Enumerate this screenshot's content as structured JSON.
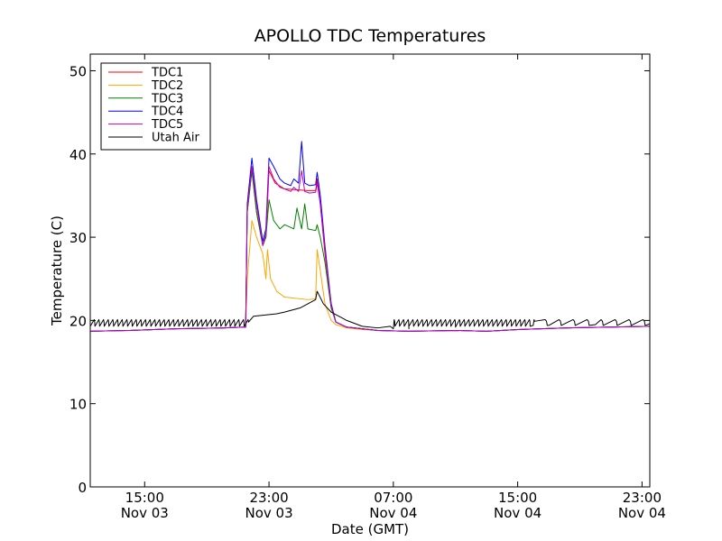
{
  "chart_data": {
    "type": "line",
    "title": "APOLLO TDC Temperatures",
    "xlabel": "Date (GMT)",
    "ylabel": "Temperature (C)",
    "ylim": [
      0,
      52
    ],
    "xlim_hours": [
      11.5,
      47.5
    ],
    "x_unit": "hours since 00:00 Nov 03 (GMT)",
    "grid": false,
    "legend_position": "top-left",
    "yticks": [
      0,
      10,
      20,
      30,
      40,
      50
    ],
    "xticks": [
      {
        "hour": 15,
        "time": "15:00",
        "date": "Nov 03"
      },
      {
        "hour": 23,
        "time": "23:00",
        "date": "Nov 03"
      },
      {
        "hour": 31,
        "time": "07:00",
        "date": "Nov 04"
      },
      {
        "hour": 39,
        "time": "15:00",
        "date": "Nov 04"
      },
      {
        "hour": 47,
        "time": "23:00",
        "date": "Nov 04"
      }
    ],
    "series": [
      {
        "name": "TDC1",
        "color": "#ff0000",
        "points": [
          [
            11.5,
            18.7
          ],
          [
            14,
            18.8
          ],
          [
            17,
            19.0
          ],
          [
            20,
            19.1
          ],
          [
            21.5,
            19.2
          ],
          [
            21.6,
            33.0
          ],
          [
            21.9,
            38.0
          ],
          [
            22.2,
            33.0
          ],
          [
            22.6,
            29.0
          ],
          [
            22.8,
            30.0
          ],
          [
            23.0,
            38.0
          ],
          [
            23.4,
            36.5
          ],
          [
            24,
            35.8
          ],
          [
            25.5,
            35.6
          ],
          [
            26,
            35.6
          ],
          [
            26.1,
            37.0
          ],
          [
            26.3,
            34.0
          ],
          [
            26.6,
            28.0
          ],
          [
            27,
            22.0
          ],
          [
            27.3,
            19.8
          ],
          [
            28,
            19.2
          ],
          [
            29,
            19.0
          ],
          [
            30,
            18.8
          ],
          [
            32,
            18.7
          ],
          [
            35,
            18.8
          ],
          [
            37,
            18.7
          ],
          [
            39,
            18.9
          ],
          [
            42,
            19.1
          ],
          [
            45,
            19.2
          ],
          [
            47.5,
            19.3
          ]
        ]
      },
      {
        "name": "TDC2",
        "color": "#ffa500",
        "points": [
          [
            11.5,
            18.7
          ],
          [
            14,
            18.8
          ],
          [
            17,
            19.0
          ],
          [
            20,
            19.1
          ],
          [
            21.5,
            19.2
          ],
          [
            21.6,
            25.0
          ],
          [
            21.9,
            32.0
          ],
          [
            22.2,
            30.0
          ],
          [
            22.6,
            28.0
          ],
          [
            22.8,
            25.0
          ],
          [
            22.9,
            28.5
          ],
          [
            23.1,
            25.0
          ],
          [
            23.5,
            23.5
          ],
          [
            24,
            22.8
          ],
          [
            25.5,
            22.5
          ],
          [
            26,
            22.6
          ],
          [
            26.1,
            28.5
          ],
          [
            26.3,
            26.0
          ],
          [
            26.6,
            22.0
          ],
          [
            27,
            20.0
          ],
          [
            27.3,
            19.5
          ],
          [
            28,
            19.1
          ],
          [
            29,
            18.9
          ],
          [
            30,
            18.8
          ],
          [
            32,
            18.7
          ],
          [
            35,
            18.8
          ],
          [
            37,
            18.7
          ],
          [
            39,
            18.9
          ],
          [
            42,
            19.1
          ],
          [
            45,
            19.2
          ],
          [
            47.5,
            19.3
          ]
        ]
      },
      {
        "name": "TDC3",
        "color": "#008000",
        "points": [
          [
            11.5,
            18.7
          ],
          [
            14,
            18.8
          ],
          [
            17,
            19.0
          ],
          [
            20,
            19.1
          ],
          [
            21.5,
            19.2
          ],
          [
            21.6,
            33.0
          ],
          [
            21.9,
            38.0
          ],
          [
            22.2,
            33.0
          ],
          [
            22.6,
            29.0
          ],
          [
            22.8,
            30.0
          ],
          [
            23.0,
            34.5
          ],
          [
            23.3,
            32.0
          ],
          [
            23.7,
            31.0
          ],
          [
            24,
            31.5
          ],
          [
            24.6,
            31.0
          ],
          [
            24.8,
            33.5
          ],
          [
            25.1,
            31.0
          ],
          [
            25.3,
            34.0
          ],
          [
            25.5,
            31.0
          ],
          [
            26,
            30.8
          ],
          [
            26.1,
            31.5
          ],
          [
            26.3,
            30.0
          ],
          [
            26.6,
            27.0
          ],
          [
            27,
            21.5
          ],
          [
            27.3,
            19.8
          ],
          [
            28,
            19.2
          ],
          [
            29,
            19.0
          ],
          [
            30,
            18.8
          ],
          [
            32,
            18.7
          ],
          [
            35,
            18.8
          ],
          [
            37,
            18.7
          ],
          [
            39,
            18.9
          ],
          [
            42,
            19.1
          ],
          [
            45,
            19.2
          ],
          [
            47.5,
            19.3
          ]
        ]
      },
      {
        "name": "TDC4",
        "color": "#0000ff",
        "points": [
          [
            11.5,
            18.7
          ],
          [
            14,
            18.8
          ],
          [
            17,
            19.0
          ],
          [
            20,
            19.1
          ],
          [
            21.5,
            19.2
          ],
          [
            21.6,
            34.0
          ],
          [
            21.9,
            39.5
          ],
          [
            22.2,
            34.5
          ],
          [
            22.6,
            29.5
          ],
          [
            22.8,
            31.0
          ],
          [
            23.0,
            39.5
          ],
          [
            23.3,
            38.5
          ],
          [
            23.7,
            37.0
          ],
          [
            24,
            36.5
          ],
          [
            24.4,
            36.2
          ],
          [
            24.6,
            37.0
          ],
          [
            24.9,
            36.5
          ],
          [
            25.1,
            41.5
          ],
          [
            25.3,
            36.5
          ],
          [
            25.6,
            36.2
          ],
          [
            26,
            36.3
          ],
          [
            26.1,
            37.8
          ],
          [
            26.3,
            35.0
          ],
          [
            26.6,
            29.0
          ],
          [
            27,
            22.0
          ],
          [
            27.3,
            19.8
          ],
          [
            28,
            19.2
          ],
          [
            29,
            19.0
          ],
          [
            30,
            18.8
          ],
          [
            32,
            18.7
          ],
          [
            35,
            18.8
          ],
          [
            37,
            18.7
          ],
          [
            39,
            18.9
          ],
          [
            42,
            19.1
          ],
          [
            45,
            19.2
          ],
          [
            47.5,
            19.3
          ]
        ]
      },
      {
        "name": "TDC5",
        "color": "#bf00bf",
        "points": [
          [
            11.5,
            18.7
          ],
          [
            14,
            18.8
          ],
          [
            17,
            19.0
          ],
          [
            20,
            19.1
          ],
          [
            21.5,
            19.2
          ],
          [
            21.6,
            33.5
          ],
          [
            21.9,
            38.5
          ],
          [
            22.2,
            34.0
          ],
          [
            22.6,
            29.0
          ],
          [
            22.8,
            30.5
          ],
          [
            23.0,
            38.5
          ],
          [
            23.3,
            37.0
          ],
          [
            23.7,
            36.0
          ],
          [
            24,
            35.8
          ],
          [
            24.4,
            35.5
          ],
          [
            24.6,
            36.0
          ],
          [
            24.9,
            35.5
          ],
          [
            25.1,
            38.0
          ],
          [
            25.3,
            35.5
          ],
          [
            25.6,
            35.3
          ],
          [
            26,
            35.4
          ],
          [
            26.1,
            36.5
          ],
          [
            26.3,
            34.0
          ],
          [
            26.6,
            28.5
          ],
          [
            27,
            21.8
          ],
          [
            27.3,
            19.8
          ],
          [
            28,
            19.2
          ],
          [
            29,
            19.0
          ],
          [
            30,
            18.8
          ],
          [
            32,
            18.7
          ],
          [
            35,
            18.8
          ],
          [
            37,
            18.7
          ],
          [
            39,
            18.9
          ],
          [
            42,
            19.1
          ],
          [
            45,
            19.2
          ],
          [
            47.5,
            19.3
          ]
        ]
      },
      {
        "name": "Utah Air",
        "color": "#000000",
        "points": [
          [
            11.5,
            19.5
          ],
          [
            21.5,
            19.6
          ],
          [
            22.0,
            20.5
          ],
          [
            23.5,
            20.8
          ],
          [
            24,
            21.0
          ],
          [
            25,
            21.5
          ],
          [
            26,
            22.5
          ],
          [
            26.1,
            23.5
          ],
          [
            26.5,
            22.0
          ],
          [
            27,
            21.0
          ],
          [
            28,
            20.0
          ],
          [
            29,
            19.3
          ],
          [
            30,
            19.1
          ],
          [
            31,
            19.0
          ],
          [
            32,
            19.0
          ],
          [
            35,
            19.2
          ],
          [
            38,
            19.3
          ],
          [
            41,
            19.4
          ],
          [
            44,
            19.5
          ],
          [
            47.5,
            19.6
          ]
        ],
        "oscillations": [
          {
            "start": 11.5,
            "end": 21.5,
            "period_hours": 0.3,
            "low": 19.3,
            "high": 20.1,
            "ramp_to": 19.8
          },
          {
            "start": 30.8,
            "end": 40.0,
            "period_hours": 0.3,
            "low": 19.3,
            "high": 20.1,
            "ramp_to": 19.9
          },
          {
            "start": 40.0,
            "end": 47.5,
            "period_hours": 0.9,
            "low": 19.4,
            "high": 20.1,
            "ramp_to": 19.9
          }
        ]
      }
    ]
  }
}
